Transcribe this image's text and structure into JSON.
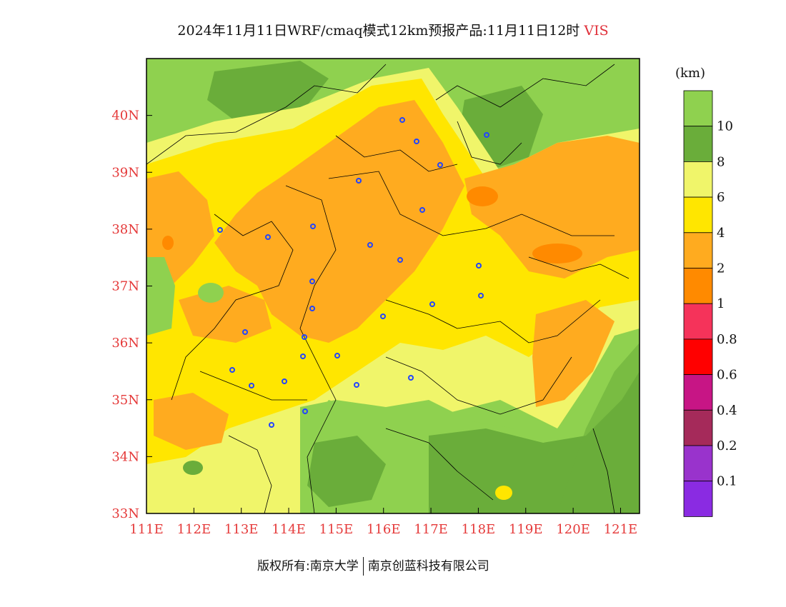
{
  "title": {
    "main": "2024年11月11日WRF/cmaq模式12km预报产品:11月11日12时",
    "variable": "VIS"
  },
  "map": {
    "lon_ticks": [
      "111E",
      "112E",
      "113E",
      "114E",
      "115E",
      "116E",
      "117E",
      "118E",
      "119E",
      "120E",
      "121E"
    ],
    "lat_ticks": [
      "33N",
      "34N",
      "35N",
      "36N",
      "37N",
      "38N",
      "39N",
      "40N"
    ],
    "lon_range": [
      111,
      121.4
    ],
    "lat_range": [
      33,
      41
    ]
  },
  "colorbar": {
    "unit": "(km)",
    "labels": [
      "10",
      "8",
      "6",
      "4",
      "2",
      "1",
      "0.8",
      "0.6",
      "0.4",
      "0.2",
      "0.1"
    ],
    "colors": [
      "#8fd14f",
      "#6aad3a",
      "#f0f56a",
      "#ffe600",
      "#ffab1f",
      "#ff8a00",
      "#f5335a",
      "#ff0000",
      "#c71585",
      "#a52a5a",
      "#9933cc",
      "#8a2be2"
    ]
  },
  "palette": {
    "green_light": "#8fd14f",
    "green_dark": "#6aad3a",
    "yellow_pale": "#f0f56a",
    "yellow": "#ffe600",
    "orange_light": "#ffab1f",
    "orange": "#ff8a00",
    "city_marker": "#2244ff"
  },
  "footer": {
    "left": "版权所有:南京大学",
    "right": "南京创蓝科技有限公司"
  }
}
